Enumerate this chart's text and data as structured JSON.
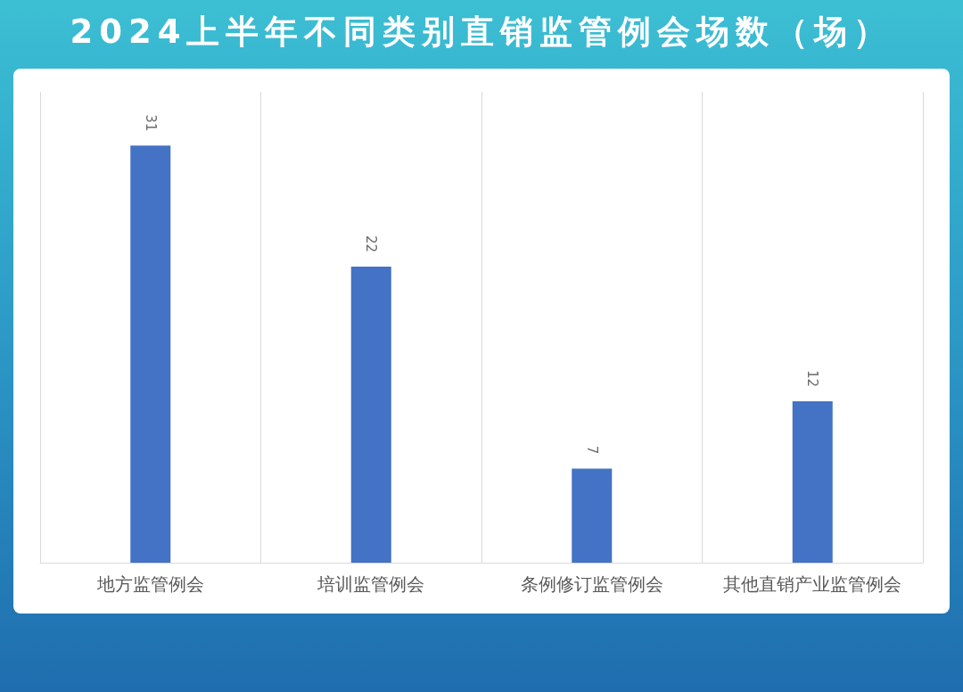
{
  "chart_data": {
    "type": "bar",
    "title": "2024上半年不同类别直销监管例会场数（场）",
    "categories": [
      "地方监管例会",
      "培训监管例会",
      "条例修订监管例会",
      "其他直销产业监管例会"
    ],
    "values": [
      31,
      22,
      7,
      12
    ],
    "color": "#4472c4",
    "data_labels": true,
    "grid": "x"
  }
}
